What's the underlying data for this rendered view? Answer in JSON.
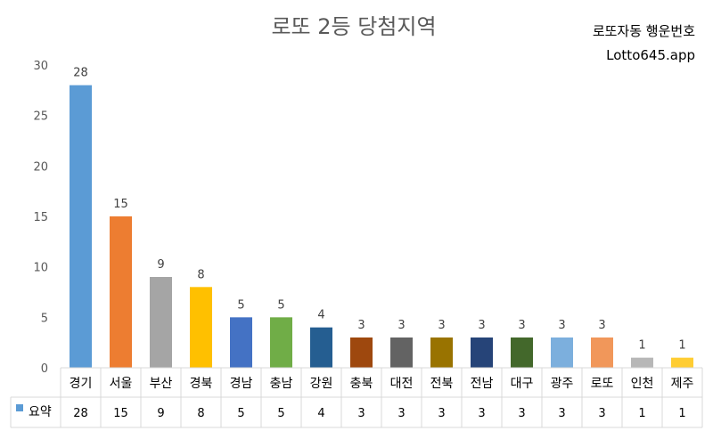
{
  "chart_data": {
    "type": "bar",
    "title": "로또 2등 당첨지역",
    "categories": [
      "경기",
      "서울",
      "부산",
      "경북",
      "경남",
      "충남",
      "강원",
      "충북",
      "대전",
      "전북",
      "전남",
      "대구",
      "광주",
      "로또",
      "인천",
      "제주"
    ],
    "series": [
      {
        "name": "요약",
        "values": [
          28,
          15,
          9,
          8,
          5,
          5,
          4,
          3,
          3,
          3,
          3,
          3,
          3,
          3,
          1,
          1
        ]
      }
    ],
    "bar_colors": [
      "#5B9BD5",
      "#ED7D31",
      "#A5A5A5",
      "#FFC000",
      "#4472C4",
      "#70AD47",
      "#255E91",
      "#9E480E",
      "#636363",
      "#997300",
      "#264478",
      "#43682B",
      "#7CAFDD",
      "#F1975A",
      "#B7B7B7",
      "#FFCD33"
    ],
    "legend_color": "#5B9BD5",
    "ylim": [
      0,
      30
    ],
    "yticks": [
      0,
      5,
      10,
      15,
      20,
      25,
      30
    ],
    "grid": false,
    "data_table": true
  },
  "brand": {
    "line1": "로또자동 행운번호",
    "line2": "Lotto645.app"
  }
}
